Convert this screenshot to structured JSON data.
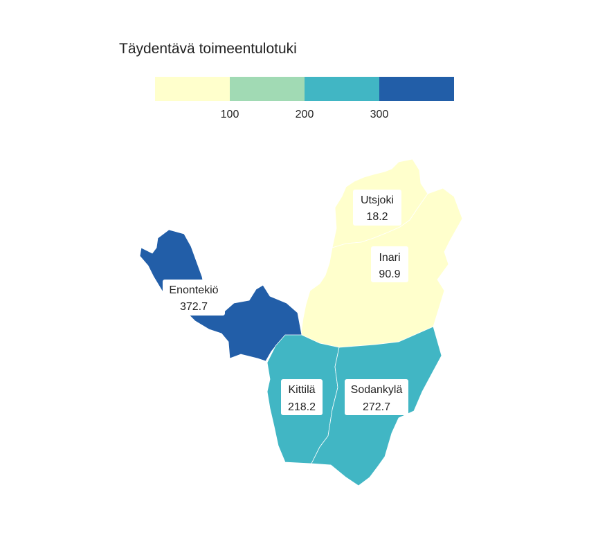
{
  "map": {
    "title": "Täydentävä toimeentulotuki",
    "legend": {
      "colors": [
        "#ffffcc",
        "#a1dab4",
        "#41b6c4",
        "#225ea8"
      ],
      "thresholds": [
        "100",
        "200",
        "300"
      ]
    },
    "regions": [
      {
        "key": "utsjoki",
        "name": "Utsjoki",
        "value": "18.2",
        "color": "#ffffcc"
      },
      {
        "key": "inari",
        "name": "Inari",
        "value": "90.9",
        "color": "#ffffcc"
      },
      {
        "key": "enontekio",
        "name": "Enontekiö",
        "value": "372.7",
        "color": "#225ea8"
      },
      {
        "key": "kittila",
        "name": "Kittilä",
        "value": "218.2",
        "color": "#41b6c4"
      },
      {
        "key": "sodankyla",
        "name": "Sodankylä",
        "value": "272.7",
        "color": "#41b6c4"
      }
    ]
  }
}
